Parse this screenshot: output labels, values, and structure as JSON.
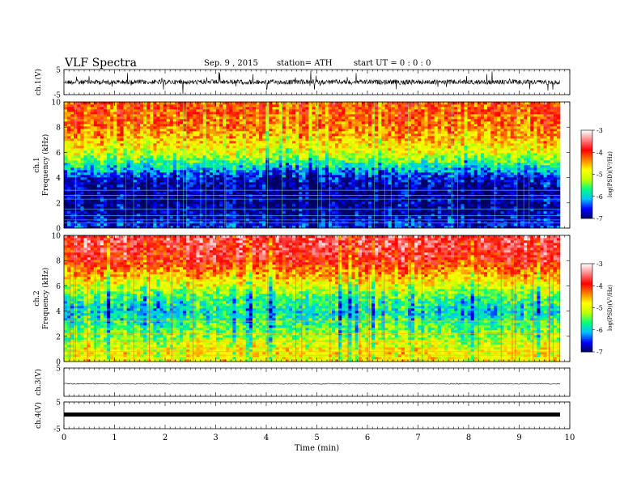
{
  "header": {
    "title": "VLF Spectra",
    "date": "Sep. 9 , 2015",
    "station": "station= ATH",
    "start": "start UT = 0 : 0 : 0"
  },
  "chart_data": [
    {
      "type": "line",
      "name": "ch1-waveform",
      "ylabel": "ch.1(V)",
      "ylim": [
        -5,
        5
      ],
      "yticks": [
        "5",
        "-5"
      ],
      "x_range_min": [
        0,
        9.8
      ]
    },
    {
      "type": "heatmap",
      "name": "ch1-spectrogram",
      "ylabel": "ch.1 Frequency (kHz)",
      "ylim": [
        0,
        10
      ],
      "yticks": [
        "0",
        "2",
        "4",
        "6",
        "8",
        "10"
      ],
      "colorbar": {
        "label": "log(PSD)(V²/Hz)",
        "ticks": [
          "-3",
          "-4",
          "-5",
          "-6",
          "-7"
        ],
        "range": [
          -7,
          -3
        ]
      },
      "profile": {
        "freq_khz": [
          0,
          1,
          2,
          3,
          4,
          5,
          6,
          7,
          8,
          9,
          10
        ],
        "log_psd": [
          -6.5,
          -6.8,
          -6.9,
          -6.9,
          -6.6,
          -5.8,
          -5.0,
          -4.6,
          -4.3,
          -4.2,
          -4.1
        ]
      }
    },
    {
      "type": "heatmap",
      "name": "ch2-spectrogram",
      "ylabel": "ch.2 Frequency (kHz)",
      "ylim": [
        0,
        10
      ],
      "yticks": [
        "0",
        "2",
        "4",
        "6",
        "8",
        "10"
      ],
      "colorbar": {
        "label": "log(PSD)(V²/Hz)",
        "ticks": [
          "-3",
          "-4",
          "-5",
          "-6",
          "-7"
        ],
        "range": [
          -7,
          -3
        ]
      },
      "profile": {
        "freq_khz": [
          0,
          1,
          2,
          3,
          4,
          5,
          6,
          7,
          8,
          9,
          10
        ],
        "log_psd": [
          -4.8,
          -4.9,
          -5.3,
          -5.6,
          -5.9,
          -5.6,
          -5.0,
          -4.4,
          -3.9,
          -3.7,
          -3.6
        ]
      }
    },
    {
      "type": "line",
      "name": "ch3-waveform",
      "ylabel": "ch.3(V)",
      "ylim": [
        -5,
        5
      ],
      "yticks": [
        "5"
      ]
    },
    {
      "type": "line",
      "name": "ch4-waveform",
      "ylabel": "ch.4(V)",
      "ylim": [
        -5,
        5
      ],
      "yticks": [
        "5",
        "-5"
      ]
    }
  ],
  "xaxis": {
    "label": "Time (min)",
    "ticks": [
      "0",
      "1",
      "2",
      "3",
      "4",
      "5",
      "6",
      "7",
      "8",
      "9",
      "10"
    ],
    "range": [
      0,
      10
    ]
  },
  "colors": {
    "scale": [
      "#000060",
      "#0000ff",
      "#00c0ff",
      "#00ff80",
      "#c0ff00",
      "#ffff00",
      "#ff8000",
      "#ff0000",
      "#ff8080",
      "#ffffff"
    ]
  }
}
